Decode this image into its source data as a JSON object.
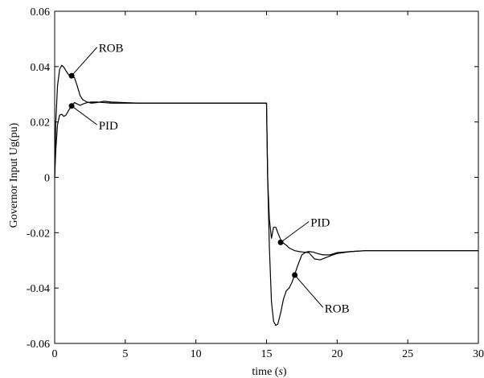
{
  "chart_data": {
    "type": "line",
    "title": "",
    "xlabel_prefix": "time (",
    "xlabel_unit": "s",
    "xlabel_suffix": ")",
    "ylabel": "Governor Input Ug(pu)",
    "xlim": [
      0,
      30
    ],
    "ylim": [
      -0.06,
      0.06
    ],
    "x_ticks": [
      0,
      5,
      10,
      15,
      20,
      25,
      30
    ],
    "x_tick_labels": [
      "0",
      "5",
      "10",
      "15",
      "20",
      "25",
      "30"
    ],
    "y_ticks": [
      0.06,
      0.04,
      0.02,
      0,
      -0.02,
      -0.04,
      -0.06
    ],
    "y_tick_labels": [
      "0.06",
      "0.04",
      "0.02",
      "0",
      "-0.02",
      "-0.04",
      "-0.06"
    ],
    "grid": false,
    "line_color": "#000000",
    "series": [
      {
        "name": "ROB",
        "x": [
          0,
          0.08,
          0.2,
          0.35,
          0.5,
          0.65,
          0.8,
          1.0,
          1.2,
          1.4,
          1.6,
          1.8,
          2.0,
          2.3,
          2.6,
          3.0,
          3.5,
          4.0,
          5.0,
          6.0,
          8.0,
          10.0,
          12.0,
          14.0,
          15.0,
          15.08,
          15.2,
          15.35,
          15.5,
          15.65,
          15.8,
          16.0,
          16.2,
          16.4,
          16.6,
          16.8,
          17.0,
          17.2,
          17.5,
          17.8,
          18.0,
          18.3,
          18.6,
          19.0,
          19.5,
          20.0,
          21.0,
          22.0,
          25.0,
          30.0
        ],
        "y": [
          0.0,
          0.02,
          0.033,
          0.039,
          0.0405,
          0.0398,
          0.0385,
          0.037,
          0.0365,
          0.036,
          0.033,
          0.0295,
          0.028,
          0.0272,
          0.0268,
          0.027,
          0.0275,
          0.0272,
          0.027,
          0.0268,
          0.0268,
          0.0268,
          0.0268,
          0.0268,
          0.0268,
          0.0,
          -0.025,
          -0.045,
          -0.052,
          -0.0535,
          -0.053,
          -0.049,
          -0.044,
          -0.041,
          -0.04,
          -0.038,
          -0.035,
          -0.032,
          -0.028,
          -0.027,
          -0.0268,
          -0.027,
          -0.0275,
          -0.028,
          -0.028,
          -0.0272,
          -0.0268,
          -0.0265,
          -0.0265,
          -0.0265
        ]
      },
      {
        "name": "PID",
        "x": [
          0,
          0.08,
          0.2,
          0.35,
          0.5,
          0.65,
          0.8,
          1.0,
          1.2,
          1.4,
          1.6,
          1.8,
          2.0,
          2.3,
          2.6,
          3.0,
          3.5,
          4.0,
          5.0,
          6.0,
          8.0,
          10.0,
          12.0,
          14.0,
          15.0,
          15.08,
          15.2,
          15.35,
          15.5,
          15.65,
          15.8,
          16.0,
          16.2,
          16.4,
          16.6,
          16.8,
          17.0,
          17.3,
          17.6,
          18.0,
          18.4,
          18.8,
          19.2,
          19.6,
          20.0,
          21.0,
          22.0,
          25.0,
          30.0
        ],
        "y": [
          0.0,
          0.01,
          0.019,
          0.0225,
          0.0228,
          0.022,
          0.0225,
          0.0243,
          0.0258,
          0.027,
          0.0265,
          0.026,
          0.0265,
          0.027,
          0.0272,
          0.0272,
          0.027,
          0.0268,
          0.0268,
          0.0268,
          0.0268,
          0.0268,
          0.0268,
          0.0268,
          0.0268,
          0.0,
          -0.015,
          -0.022,
          -0.018,
          -0.018,
          -0.02,
          -0.0225,
          -0.0238,
          -0.0245,
          -0.0255,
          -0.026,
          -0.0265,
          -0.0268,
          -0.027,
          -0.0272,
          -0.0295,
          -0.0298,
          -0.029,
          -0.0282,
          -0.0275,
          -0.0268,
          -0.0265,
          -0.0265,
          -0.0265
        ]
      }
    ],
    "annotations": [
      {
        "text": "ROB",
        "point": [
          1.2,
          0.0367
        ],
        "label_pos": [
          3.0,
          0.047
        ]
      },
      {
        "text": "PID",
        "point": [
          1.2,
          0.0258
        ],
        "label_pos": [
          3.0,
          0.019
        ]
      },
      {
        "text": "PID",
        "point": [
          16.0,
          -0.0235
        ],
        "label_pos": [
          18.0,
          -0.016
        ]
      },
      {
        "text": "ROB",
        "point": [
          17.0,
          -0.0353
        ],
        "label_pos": [
          19.0,
          -0.047
        ]
      }
    ]
  }
}
